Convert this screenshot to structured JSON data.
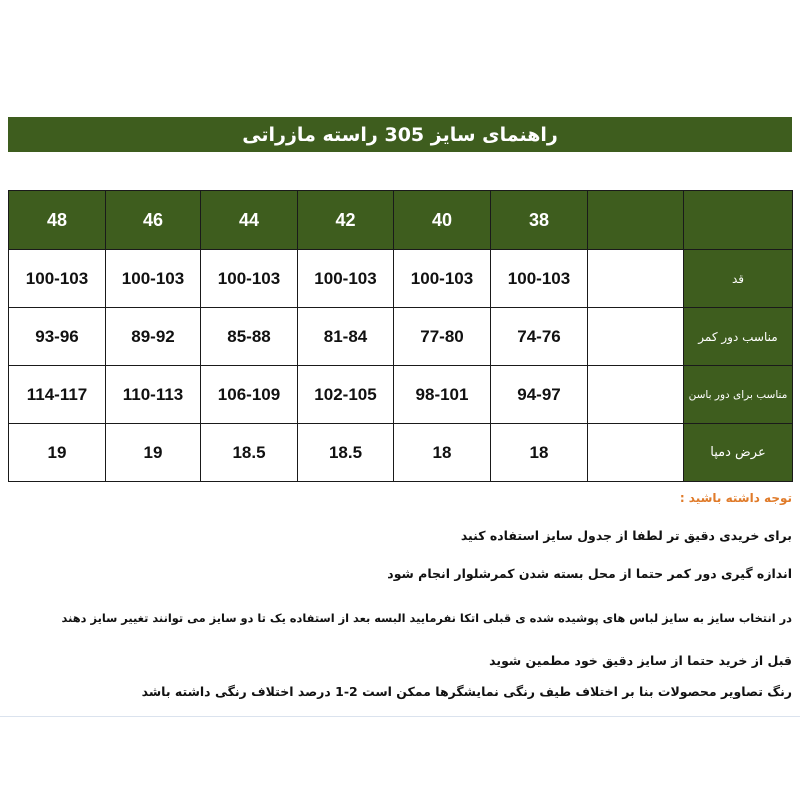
{
  "title": "راهنمای سایز  305 راسته مازراتی",
  "table": {
    "sizes": [
      "38",
      "40",
      "42",
      "44",
      "46",
      "48"
    ],
    "rows": [
      {
        "label": "قد",
        "values": [
          "100-103",
          "100-103",
          "100-103",
          "100-103",
          "100-103",
          "100-103"
        ]
      },
      {
        "label": "مناسب دور کمر",
        "values": [
          "74-76",
          "77-80",
          "81-84",
          "85-88",
          "89-92",
          "93-96"
        ]
      },
      {
        "label": "مناسب برای دور باسن",
        "values": [
          "94-97",
          "98-101",
          "102-105",
          "106-109",
          "110-113",
          "114-117"
        ]
      },
      {
        "label": "عرض دمپا",
        "values": [
          "18",
          "18",
          "18.5",
          "18.5",
          "19",
          "19"
        ]
      }
    ]
  },
  "notes": {
    "heading": "توجه داشته باشید :",
    "lines": [
      "برای خریدی دقیق تر لطفا از جدول سایز استفاده کنید",
      "اندازه گیری دور کمر حتما از محل بسته شدن کمرشلوار انجام شود",
      "در انتخاب سایز به سایز لباس های پوشیده شده ی قبلی اتکا نفرمایید البسه بعد از استفاده یک تا دو سایز می توانند تغییر سایز دهند",
      "قبل از خرید حتما از سایز دقیق خود مطمین شوید",
      "رنگ تصاویر محصولات بنا بر اختلاف  طیف رنگی نمایشگرها ممکن است 2-1 درصد اختلاف رنگی داشته باشد"
    ]
  },
  "colors": {
    "header_green": "#3e5d1e",
    "note_heading": "#e07b2a"
  }
}
